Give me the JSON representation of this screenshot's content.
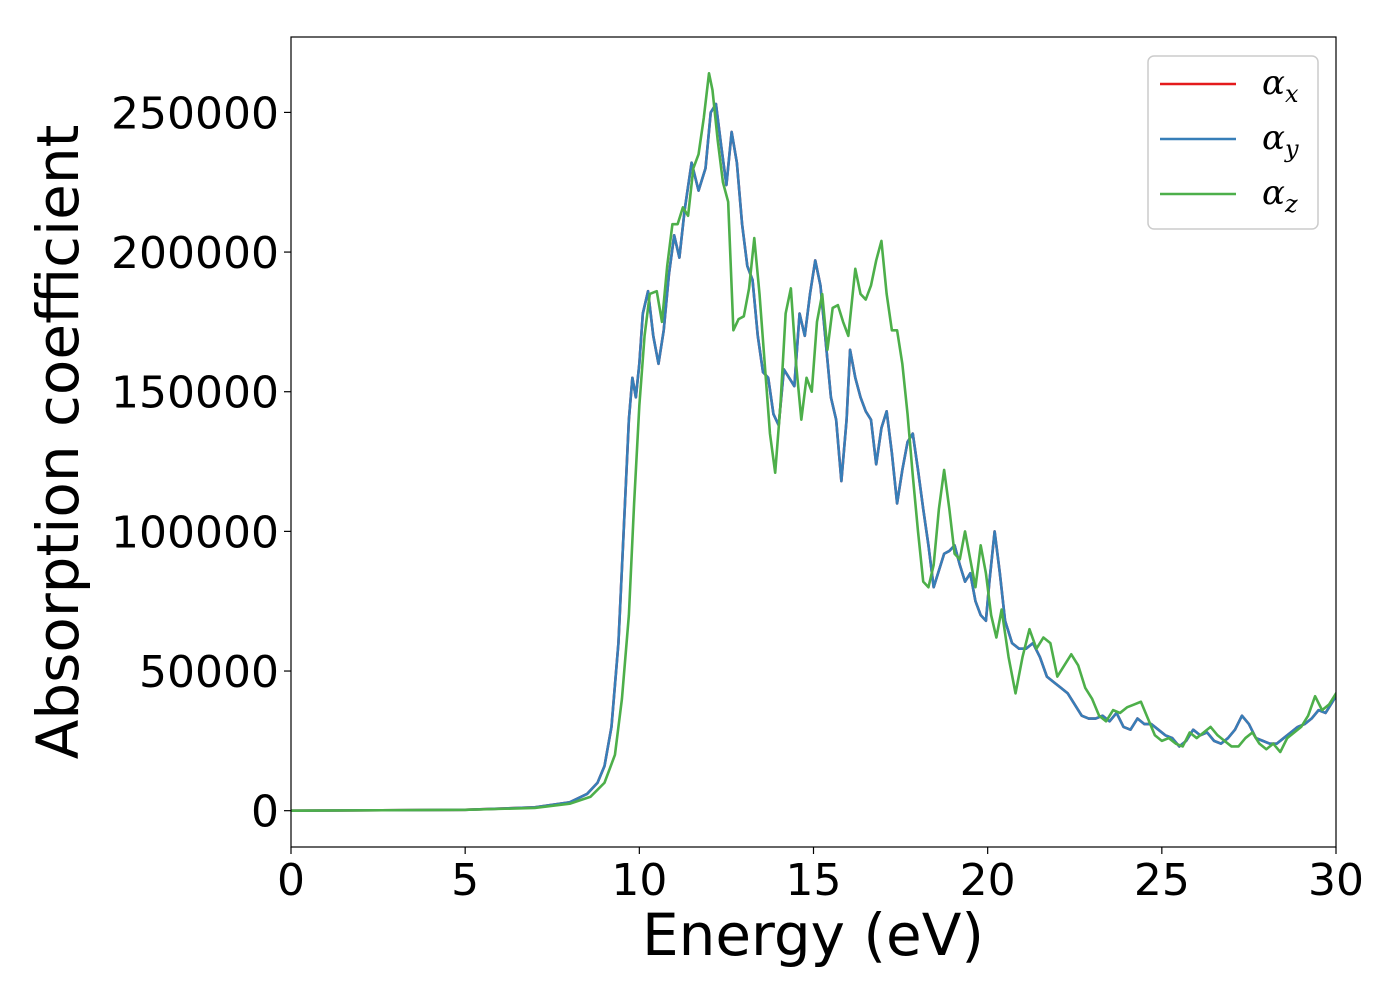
{
  "chart_data": {
    "type": "line",
    "xlabel": "Energy (eV)",
    "ylabel": "Absorption coefficient",
    "xlim": [
      0,
      30
    ],
    "ylim": [
      -13000,
      277000
    ],
    "xticks": [
      "0",
      "5",
      "10",
      "15",
      "20",
      "25",
      "30"
    ],
    "yticks": [
      "0",
      "50000",
      "100000",
      "150000",
      "200000",
      "250000"
    ],
    "grid": false,
    "legend": "top-right",
    "series": [
      {
        "name": "α",
        "sub": "x",
        "color": "#e41a1c",
        "x": [
          0,
          5,
          7,
          8,
          8.5,
          8.8,
          9.0,
          9.2,
          9.4,
          9.55,
          9.7,
          9.8,
          9.9,
          10.0,
          10.1,
          10.25,
          10.4,
          10.55,
          10.7,
          10.85,
          11.0,
          11.15,
          11.3,
          11.5,
          11.7,
          11.9,
          12.05,
          12.2,
          12.35,
          12.5,
          12.65,
          12.8,
          12.95,
          13.1,
          13.25,
          13.4,
          13.55,
          13.7,
          13.85,
          14.0,
          14.15,
          14.3,
          14.45,
          14.6,
          14.75,
          14.9,
          15.05,
          15.2,
          15.35,
          15.5,
          15.65,
          15.8,
          15.95,
          16.05,
          16.2,
          16.35,
          16.5,
          16.65,
          16.8,
          16.95,
          17.1,
          17.25,
          17.4,
          17.55,
          17.7,
          17.85,
          18.0,
          18.15,
          18.3,
          18.45,
          18.6,
          18.75,
          18.9,
          19.05,
          19.2,
          19.35,
          19.5,
          19.65,
          19.8,
          19.95,
          20.05,
          20.2,
          20.35,
          20.5,
          20.7,
          20.9,
          21.1,
          21.3,
          21.5,
          21.7,
          21.9,
          22.1,
          22.3,
          22.5,
          22.7,
          22.9,
          23.1,
          23.3,
          23.5,
          23.7,
          23.9,
          24.1,
          24.3,
          24.5,
          24.7,
          24.9,
          25.1,
          25.3,
          25.5,
          25.7,
          25.9,
          26.1,
          26.3,
          26.5,
          26.7,
          26.9,
          27.1,
          27.3,
          27.5,
          27.7,
          27.9,
          28.1,
          28.3,
          28.5,
          28.7,
          28.9,
          29.1,
          29.3,
          29.5,
          29.7,
          29.85,
          30.0
        ],
        "y": [
          0,
          300,
          1200,
          3000,
          6000,
          10000,
          16000,
          30000,
          60000,
          100000,
          140000,
          155000,
          148000,
          160000,
          178000,
          186000,
          170000,
          160000,
          172000,
          192000,
          206000,
          198000,
          215000,
          232000,
          222000,
          230000,
          250000,
          253000,
          238000,
          224000,
          243000,
          232000,
          210000,
          195000,
          190000,
          170000,
          157000,
          155000,
          142000,
          138000,
          158000,
          155000,
          152000,
          178000,
          170000,
          185000,
          197000,
          188000,
          168000,
          148000,
          140000,
          118000,
          140000,
          165000,
          155000,
          148000,
          143000,
          140000,
          124000,
          137000,
          143000,
          128000,
          110000,
          122000,
          132000,
          135000,
          122000,
          108000,
          95000,
          80000,
          86000,
          92000,
          93000,
          95000,
          88000,
          82000,
          85000,
          75000,
          70000,
          68000,
          82000,
          100000,
          85000,
          68000,
          60000,
          58000,
          58000,
          60000,
          55000,
          48000,
          46000,
          44000,
          42000,
          38000,
          34000,
          33000,
          33000,
          34000,
          32000,
          35000,
          30000,
          29000,
          33000,
          31000,
          31000,
          29000,
          27000,
          26000,
          23000,
          25000,
          29000,
          27000,
          28000,
          25000,
          24000,
          26000,
          29000,
          34000,
          31000,
          26000,
          25000,
          24000,
          24000,
          26000,
          28000,
          30000,
          31000,
          33000,
          36000,
          35000,
          38000,
          41000
        ]
      },
      {
        "name": "α",
        "sub": "y",
        "color": "#377eb8",
        "x": [
          0,
          5,
          7,
          8,
          8.5,
          8.8,
          9.0,
          9.2,
          9.4,
          9.55,
          9.7,
          9.8,
          9.9,
          10.0,
          10.1,
          10.25,
          10.4,
          10.55,
          10.7,
          10.85,
          11.0,
          11.15,
          11.3,
          11.5,
          11.7,
          11.9,
          12.05,
          12.2,
          12.35,
          12.5,
          12.65,
          12.8,
          12.95,
          13.1,
          13.25,
          13.4,
          13.55,
          13.7,
          13.85,
          14.0,
          14.15,
          14.3,
          14.45,
          14.6,
          14.75,
          14.9,
          15.05,
          15.2,
          15.35,
          15.5,
          15.65,
          15.8,
          15.95,
          16.05,
          16.2,
          16.35,
          16.5,
          16.65,
          16.8,
          16.95,
          17.1,
          17.25,
          17.4,
          17.55,
          17.7,
          17.85,
          18.0,
          18.15,
          18.3,
          18.45,
          18.6,
          18.75,
          18.9,
          19.05,
          19.2,
          19.35,
          19.5,
          19.65,
          19.8,
          19.95,
          20.05,
          20.2,
          20.35,
          20.5,
          20.7,
          20.9,
          21.1,
          21.3,
          21.5,
          21.7,
          21.9,
          22.1,
          22.3,
          22.5,
          22.7,
          22.9,
          23.1,
          23.3,
          23.5,
          23.7,
          23.9,
          24.1,
          24.3,
          24.5,
          24.7,
          24.9,
          25.1,
          25.3,
          25.5,
          25.7,
          25.9,
          26.1,
          26.3,
          26.5,
          26.7,
          26.9,
          27.1,
          27.3,
          27.5,
          27.7,
          27.9,
          28.1,
          28.3,
          28.5,
          28.7,
          28.9,
          29.1,
          29.3,
          29.5,
          29.7,
          29.85,
          30.0
        ],
        "y": [
          0,
          300,
          1200,
          3000,
          6000,
          10000,
          16000,
          30000,
          60000,
          100000,
          140000,
          155000,
          148000,
          160000,
          178000,
          186000,
          170000,
          160000,
          172000,
          192000,
          206000,
          198000,
          215000,
          232000,
          222000,
          230000,
          250000,
          253000,
          238000,
          224000,
          243000,
          232000,
          210000,
          195000,
          190000,
          170000,
          157000,
          155000,
          142000,
          138000,
          158000,
          155000,
          152000,
          178000,
          170000,
          185000,
          197000,
          188000,
          168000,
          148000,
          140000,
          118000,
          140000,
          165000,
          155000,
          148000,
          143000,
          140000,
          124000,
          137000,
          143000,
          128000,
          110000,
          122000,
          132000,
          135000,
          122000,
          108000,
          95000,
          80000,
          86000,
          92000,
          93000,
          95000,
          88000,
          82000,
          85000,
          75000,
          70000,
          68000,
          82000,
          100000,
          85000,
          68000,
          60000,
          58000,
          58000,
          60000,
          55000,
          48000,
          46000,
          44000,
          42000,
          38000,
          34000,
          33000,
          33000,
          34000,
          32000,
          35000,
          30000,
          29000,
          33000,
          31000,
          31000,
          29000,
          27000,
          26000,
          23000,
          25000,
          29000,
          27000,
          28000,
          25000,
          24000,
          26000,
          29000,
          34000,
          31000,
          26000,
          25000,
          24000,
          24000,
          26000,
          28000,
          30000,
          31000,
          33000,
          36000,
          35000,
          38000,
          41000
        ]
      },
      {
        "name": "α",
        "sub": "z",
        "color": "#4daf4a",
        "x": [
          0,
          5,
          7,
          8,
          8.6,
          9.0,
          9.3,
          9.5,
          9.7,
          9.85,
          10.0,
          10.15,
          10.3,
          10.5,
          10.65,
          10.8,
          10.95,
          11.1,
          11.25,
          11.4,
          11.55,
          11.7,
          11.85,
          12.0,
          12.1,
          12.25,
          12.4,
          12.55,
          12.7,
          12.85,
          13.0,
          13.15,
          13.3,
          13.45,
          13.6,
          13.75,
          13.9,
          14.05,
          14.2,
          14.35,
          14.5,
          14.65,
          14.8,
          14.95,
          15.1,
          15.25,
          15.4,
          15.55,
          15.7,
          15.85,
          16.0,
          16.2,
          16.35,
          16.5,
          16.65,
          16.8,
          16.95,
          17.1,
          17.25,
          17.4,
          17.55,
          17.7,
          17.85,
          18.0,
          18.15,
          18.3,
          18.45,
          18.6,
          18.75,
          18.9,
          19.05,
          19.2,
          19.35,
          19.5,
          19.65,
          19.8,
          19.95,
          20.1,
          20.25,
          20.4,
          20.6,
          20.8,
          21.0,
          21.2,
          21.4,
          21.6,
          21.8,
          22.0,
          22.2,
          22.4,
          22.6,
          22.8,
          23.0,
          23.2,
          23.4,
          23.6,
          23.8,
          24.0,
          24.2,
          24.4,
          24.6,
          24.8,
          25.0,
          25.2,
          25.4,
          25.6,
          25.8,
          26.0,
          26.2,
          26.4,
          26.6,
          26.8,
          27.0,
          27.2,
          27.4,
          27.6,
          27.8,
          28.0,
          28.2,
          28.4,
          28.6,
          28.8,
          29.0,
          29.2,
          29.4,
          29.6,
          29.8,
          30.0
        ],
        "y": [
          0,
          300,
          1000,
          2500,
          5000,
          10000,
          20000,
          40000,
          70000,
          110000,
          145000,
          170000,
          185000,
          186000,
          175000,
          195000,
          210000,
          210000,
          216000,
          213000,
          230000,
          235000,
          248000,
          264000,
          258000,
          240000,
          225000,
          218000,
          172000,
          176000,
          177000,
          187000,
          205000,
          185000,
          160000,
          135000,
          121000,
          145000,
          178000,
          187000,
          160000,
          140000,
          155000,
          150000,
          175000,
          185000,
          165000,
          180000,
          181000,
          175000,
          170000,
          194000,
          185000,
          183000,
          188000,
          197000,
          204000,
          185000,
          172000,
          172000,
          160000,
          142000,
          120000,
          100000,
          82000,
          80000,
          88000,
          108000,
          122000,
          108000,
          92000,
          90000,
          100000,
          90000,
          80000,
          95000,
          85000,
          70000,
          62000,
          72000,
          55000,
          42000,
          55000,
          65000,
          58000,
          62000,
          60000,
          48000,
          52000,
          56000,
          52000,
          44000,
          40000,
          34000,
          32000,
          36000,
          35000,
          37000,
          38000,
          39000,
          33000,
          27000,
          25000,
          26000,
          24000,
          23000,
          28000,
          26000,
          28000,
          30000,
          27000,
          25000,
          23000,
          23000,
          26000,
          28000,
          24000,
          22000,
          24000,
          21000,
          26000,
          28000,
          30000,
          34000,
          41000,
          36000,
          38000,
          42000
        ]
      }
    ]
  }
}
